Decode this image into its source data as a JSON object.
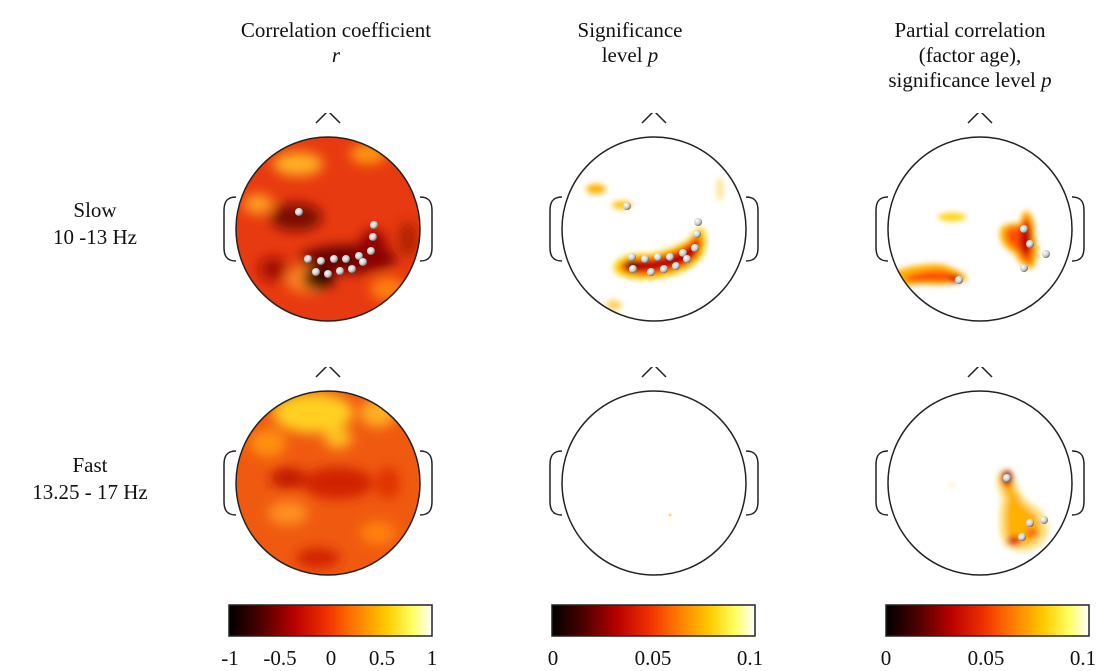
{
  "columns": [
    {
      "title_line1": "Correlation coefficient",
      "title_line2": "",
      "title_var": "r",
      "title_line3": ""
    },
    {
      "title_line1": "Significance",
      "title_line2": "level ",
      "title_var": "p",
      "title_line3": ""
    },
    {
      "title_line1": "Partial correlation",
      "title_line2": "(factor age),",
      "title_line3": "significance level ",
      "title_var": "p"
    }
  ],
  "rows": [
    {
      "name": "Slow",
      "range": "10 -13 Hz"
    },
    {
      "name": "Fast",
      "range": "13.25 - 17 Hz"
    }
  ],
  "colorbars": [
    {
      "ticks": [
        "-1",
        "-0.5",
        "0",
        "0.5",
        "1"
      ],
      "min": -1,
      "max": 1
    },
    {
      "ticks": [
        "0",
        "0.05",
        "0.1"
      ],
      "min": 0,
      "max": 0.1
    },
    {
      "ticks": [
        "0",
        "0.05",
        "0.1"
      ],
      "min": 0,
      "max": 0.1
    }
  ],
  "colors": {
    "colormap": [
      "#000000",
      "#5a0000",
      "#c00000",
      "#ff3a00",
      "#ff8c00",
      "#ffd800",
      "#ffffa0",
      "#ffffff"
    ],
    "background_red": "#e83a10",
    "electrode": "#dcdcdc"
  }
}
